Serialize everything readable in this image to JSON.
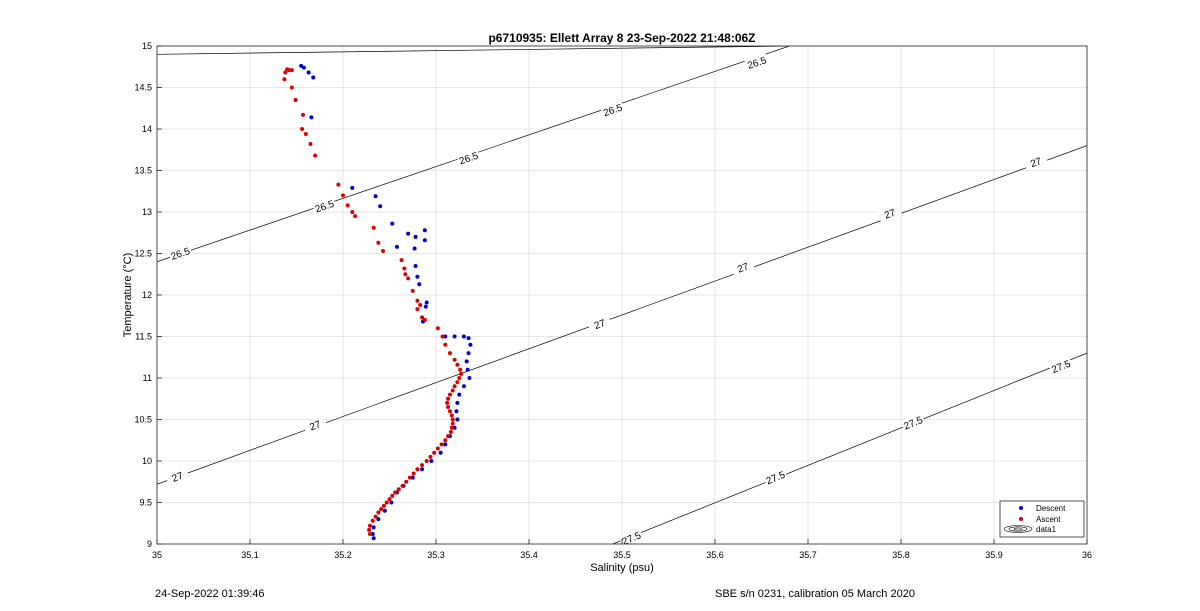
{
  "chart_data": {
    "type": "scatter",
    "title": "p6710935: Ellett Array 8 23-Sep-2022 21:48:06Z",
    "xlabel": "Salinity (psu)",
    "ylabel": "Temperature (°C)",
    "xlim": [
      35,
      36
    ],
    "ylim": [
      9,
      15
    ],
    "xticks": [
      "35",
      "35.1",
      "35.2",
      "35.3",
      "35.4",
      "35.5",
      "35.6",
      "35.7",
      "35.8",
      "35.9",
      "36"
    ],
    "yticks": [
      "9",
      "9.5",
      "10",
      "10.5",
      "11",
      "11.5",
      "12",
      "12.5",
      "13",
      "13.5",
      "14",
      "14.5",
      "15"
    ],
    "grid": true,
    "legend": {
      "placement": "bottom-right",
      "entries": [
        {
          "label": "Descent",
          "color": "#0000cc"
        },
        {
          "label": "Ascent",
          "color": "#dd0000"
        },
        {
          "label": "data1",
          "color": "#000000"
        }
      ]
    },
    "contours": [
      {
        "label": "26.5",
        "points": [
          [
            35.0,
            14.9
          ],
          [
            35.68,
            15.0
          ]
        ],
        "label_at": []
      },
      {
        "label": "26.5",
        "points": [
          [
            35.0,
            12.4
          ],
          [
            35.68,
            15.0
          ]
        ],
        "label_at": [
          [
            35.025,
            12.5
          ],
          [
            35.18,
            13.07
          ],
          [
            35.335,
            13.65
          ],
          [
            35.49,
            14.23
          ],
          [
            35.645,
            14.8
          ]
        ]
      },
      {
        "label": "27",
        "points": [
          [
            35.0,
            9.72
          ],
          [
            36.0,
            13.8
          ]
        ],
        "label_at": [
          [
            35.022,
            9.81
          ],
          [
            35.17,
            10.43
          ],
          [
            35.476,
            11.65
          ],
          [
            35.63,
            12.33
          ],
          [
            35.788,
            12.98
          ],
          [
            35.945,
            13.6
          ]
        ]
      },
      {
        "label": "27.5",
        "points": [
          [
            35.49,
            9.0
          ],
          [
            36.0,
            11.3
          ]
        ],
        "label_at": [
          [
            35.51,
            9.07
          ],
          [
            35.665,
            9.8
          ],
          [
            35.813,
            10.46
          ],
          [
            35.972,
            11.14
          ]
        ]
      }
    ],
    "series": [
      {
        "name": "Descent",
        "color": "#0000cc",
        "points": [
          [
            35.155,
            14.76
          ],
          [
            35.158,
            14.74
          ],
          [
            35.163,
            14.68
          ],
          [
            35.168,
            14.62
          ],
          [
            35.166,
            14.14
          ],
          [
            35.21,
            13.29
          ],
          [
            35.235,
            13.19
          ],
          [
            35.24,
            13.07
          ],
          [
            35.253,
            12.86
          ],
          [
            35.27,
            12.74
          ],
          [
            35.278,
            12.7
          ],
          [
            35.288,
            12.66
          ],
          [
            35.288,
            12.78
          ],
          [
            35.258,
            12.58
          ],
          [
            35.277,
            12.56
          ],
          [
            35.278,
            12.35
          ],
          [
            35.28,
            12.22
          ],
          [
            35.282,
            12.13
          ],
          [
            35.29,
            11.91
          ],
          [
            35.289,
            11.86
          ],
          [
            35.286,
            11.68
          ],
          [
            35.31,
            11.5
          ],
          [
            35.32,
            11.5
          ],
          [
            35.33,
            11.5
          ],
          [
            35.335,
            11.48
          ],
          [
            35.337,
            11.4
          ],
          [
            35.335,
            11.3
          ],
          [
            35.333,
            11.2
          ],
          [
            35.334,
            11.1
          ],
          [
            35.336,
            11.0
          ],
          [
            35.33,
            10.9
          ],
          [
            35.325,
            10.8
          ],
          [
            35.323,
            10.7
          ],
          [
            35.322,
            10.6
          ],
          [
            35.323,
            10.5
          ],
          [
            35.32,
            10.4
          ],
          [
            35.315,
            10.3
          ],
          [
            35.31,
            10.2
          ],
          [
            35.305,
            10.1
          ],
          [
            35.295,
            10.0
          ],
          [
            35.285,
            9.9
          ],
          [
            35.275,
            9.8
          ],
          [
            35.265,
            9.7
          ],
          [
            35.258,
            9.62
          ],
          [
            35.252,
            9.5
          ],
          [
            35.245,
            9.4
          ],
          [
            35.238,
            9.3
          ],
          [
            35.233,
            9.2
          ],
          [
            35.232,
            9.12
          ],
          [
            35.233,
            9.07
          ]
        ]
      },
      {
        "name": "Ascent",
        "color": "#dd0000",
        "points": [
          [
            35.14,
            14.72
          ],
          [
            35.142,
            14.71
          ],
          [
            35.145,
            14.71
          ],
          [
            35.138,
            14.68
          ],
          [
            35.137,
            14.6
          ],
          [
            35.145,
            14.5
          ],
          [
            35.149,
            14.35
          ],
          [
            35.157,
            14.17
          ],
          [
            35.156,
            14.0
          ],
          [
            35.16,
            13.94
          ],
          [
            35.165,
            13.82
          ],
          [
            35.17,
            13.68
          ],
          [
            35.195,
            13.33
          ],
          [
            35.2,
            13.2
          ],
          [
            35.205,
            13.08
          ],
          [
            35.21,
            13.0
          ],
          [
            35.213,
            12.95
          ],
          [
            35.233,
            12.81
          ],
          [
            35.238,
            12.63
          ],
          [
            35.243,
            12.53
          ],
          [
            35.263,
            12.42
          ],
          [
            35.266,
            12.32
          ],
          [
            35.267,
            12.25
          ],
          [
            35.27,
            12.2
          ],
          [
            35.275,
            12.05
          ],
          [
            35.28,
            11.93
          ],
          [
            35.283,
            11.88
          ],
          [
            35.28,
            11.83
          ],
          [
            35.285,
            11.73
          ],
          [
            35.288,
            11.7
          ],
          [
            35.302,
            11.6
          ],
          [
            35.307,
            11.5
          ],
          [
            35.31,
            11.4
          ],
          [
            35.315,
            11.3
          ],
          [
            35.32,
            11.22
          ],
          [
            35.323,
            11.16
          ],
          [
            35.326,
            11.1
          ],
          [
            35.327,
            11.05
          ],
          [
            35.325,
            11.0
          ],
          [
            35.323,
            10.95
          ],
          [
            35.32,
            10.9
          ],
          [
            35.318,
            10.85
          ],
          [
            35.315,
            10.8
          ],
          [
            35.313,
            10.75
          ],
          [
            35.312,
            10.7
          ],
          [
            35.313,
            10.65
          ],
          [
            35.315,
            10.6
          ],
          [
            35.317,
            10.55
          ],
          [
            35.318,
            10.5
          ],
          [
            35.318,
            10.45
          ],
          [
            35.317,
            10.4
          ],
          [
            35.316,
            10.35
          ],
          [
            35.313,
            10.3
          ],
          [
            35.31,
            10.25
          ],
          [
            35.306,
            10.2
          ],
          [
            35.302,
            10.15
          ],
          [
            35.298,
            10.1
          ],
          [
            35.294,
            10.05
          ],
          [
            35.29,
            10.0
          ],
          [
            35.285,
            9.95
          ],
          [
            35.28,
            9.9
          ],
          [
            35.276,
            9.85
          ],
          [
            35.272,
            9.8
          ],
          [
            35.268,
            9.75
          ],
          [
            35.264,
            9.7
          ],
          [
            35.26,
            9.66
          ],
          [
            35.256,
            9.62
          ],
          [
            35.253,
            9.58
          ],
          [
            35.25,
            9.54
          ],
          [
            35.247,
            9.5
          ],
          [
            35.244,
            9.46
          ],
          [
            35.241,
            9.42
          ],
          [
            35.238,
            9.38
          ],
          [
            35.235,
            9.33
          ],
          [
            35.232,
            9.28
          ],
          [
            35.229,
            9.22
          ],
          [
            35.228,
            9.17
          ],
          [
            35.229,
            9.12
          ]
        ]
      }
    ]
  },
  "footer": {
    "left": "24-Sep-2022 01:39:46",
    "right": "SBE s/n 0231, calibration 05 March 2020"
  }
}
